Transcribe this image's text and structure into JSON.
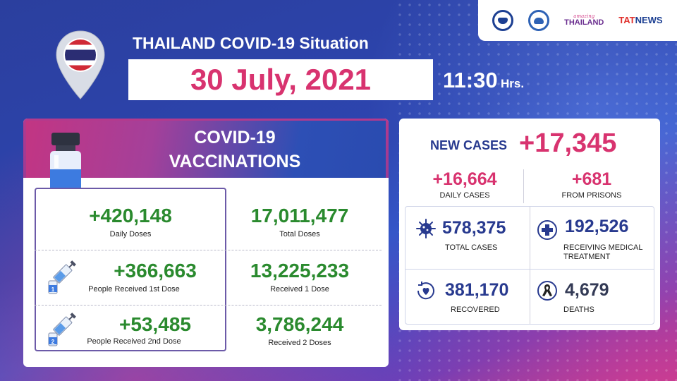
{
  "logos": {
    "amazing_small": "amazing",
    "amazing_big": "THAILAND",
    "tat_a": "TAT",
    "tat_b": "NEWS"
  },
  "header": {
    "title": "THAILAND COVID-19 Situation",
    "date": "30 July, 2021",
    "time": "11:30",
    "time_unit": "Hrs."
  },
  "vaccinations": {
    "title_line1": "COVID-19",
    "title_line2": "VACCINATIONS",
    "rows": [
      {
        "left_value": "+420,148",
        "left_label": "Daily Doses",
        "right_value": "17,011,477",
        "right_label": "Total Doses"
      },
      {
        "left_value": "+366,663",
        "left_label": "People Received 1st Dose",
        "right_value": "13,225,233",
        "right_label": "Received 1 Dose",
        "dose_badge": "1"
      },
      {
        "left_value": "+53,485",
        "left_label": "People Received 2nd Dose",
        "right_value": "3,786,244",
        "right_label": "Received 2 Doses",
        "dose_badge": "2"
      }
    ]
  },
  "cases": {
    "new_label": "NEW CASES",
    "new_value": "+17,345",
    "daily_value": "+16,664",
    "daily_label": "DAILY CASES",
    "prison_value": "+681",
    "prison_label": "FROM PRISONS",
    "total_value": "578,375",
    "total_label": "TOTAL CASES",
    "treatment_value": "192,526",
    "treatment_label_1": "RECEIVING MEDICAL",
    "treatment_label_2": "TREATMENT",
    "recovered_value": "381,170",
    "recovered_label": "RECOVERED",
    "deaths_value": "4,679",
    "deaths_label": "DEATHS"
  },
  "colors": {
    "accent_pink": "#d8336f",
    "navy": "#283a8f",
    "green": "#2a8a2e"
  }
}
